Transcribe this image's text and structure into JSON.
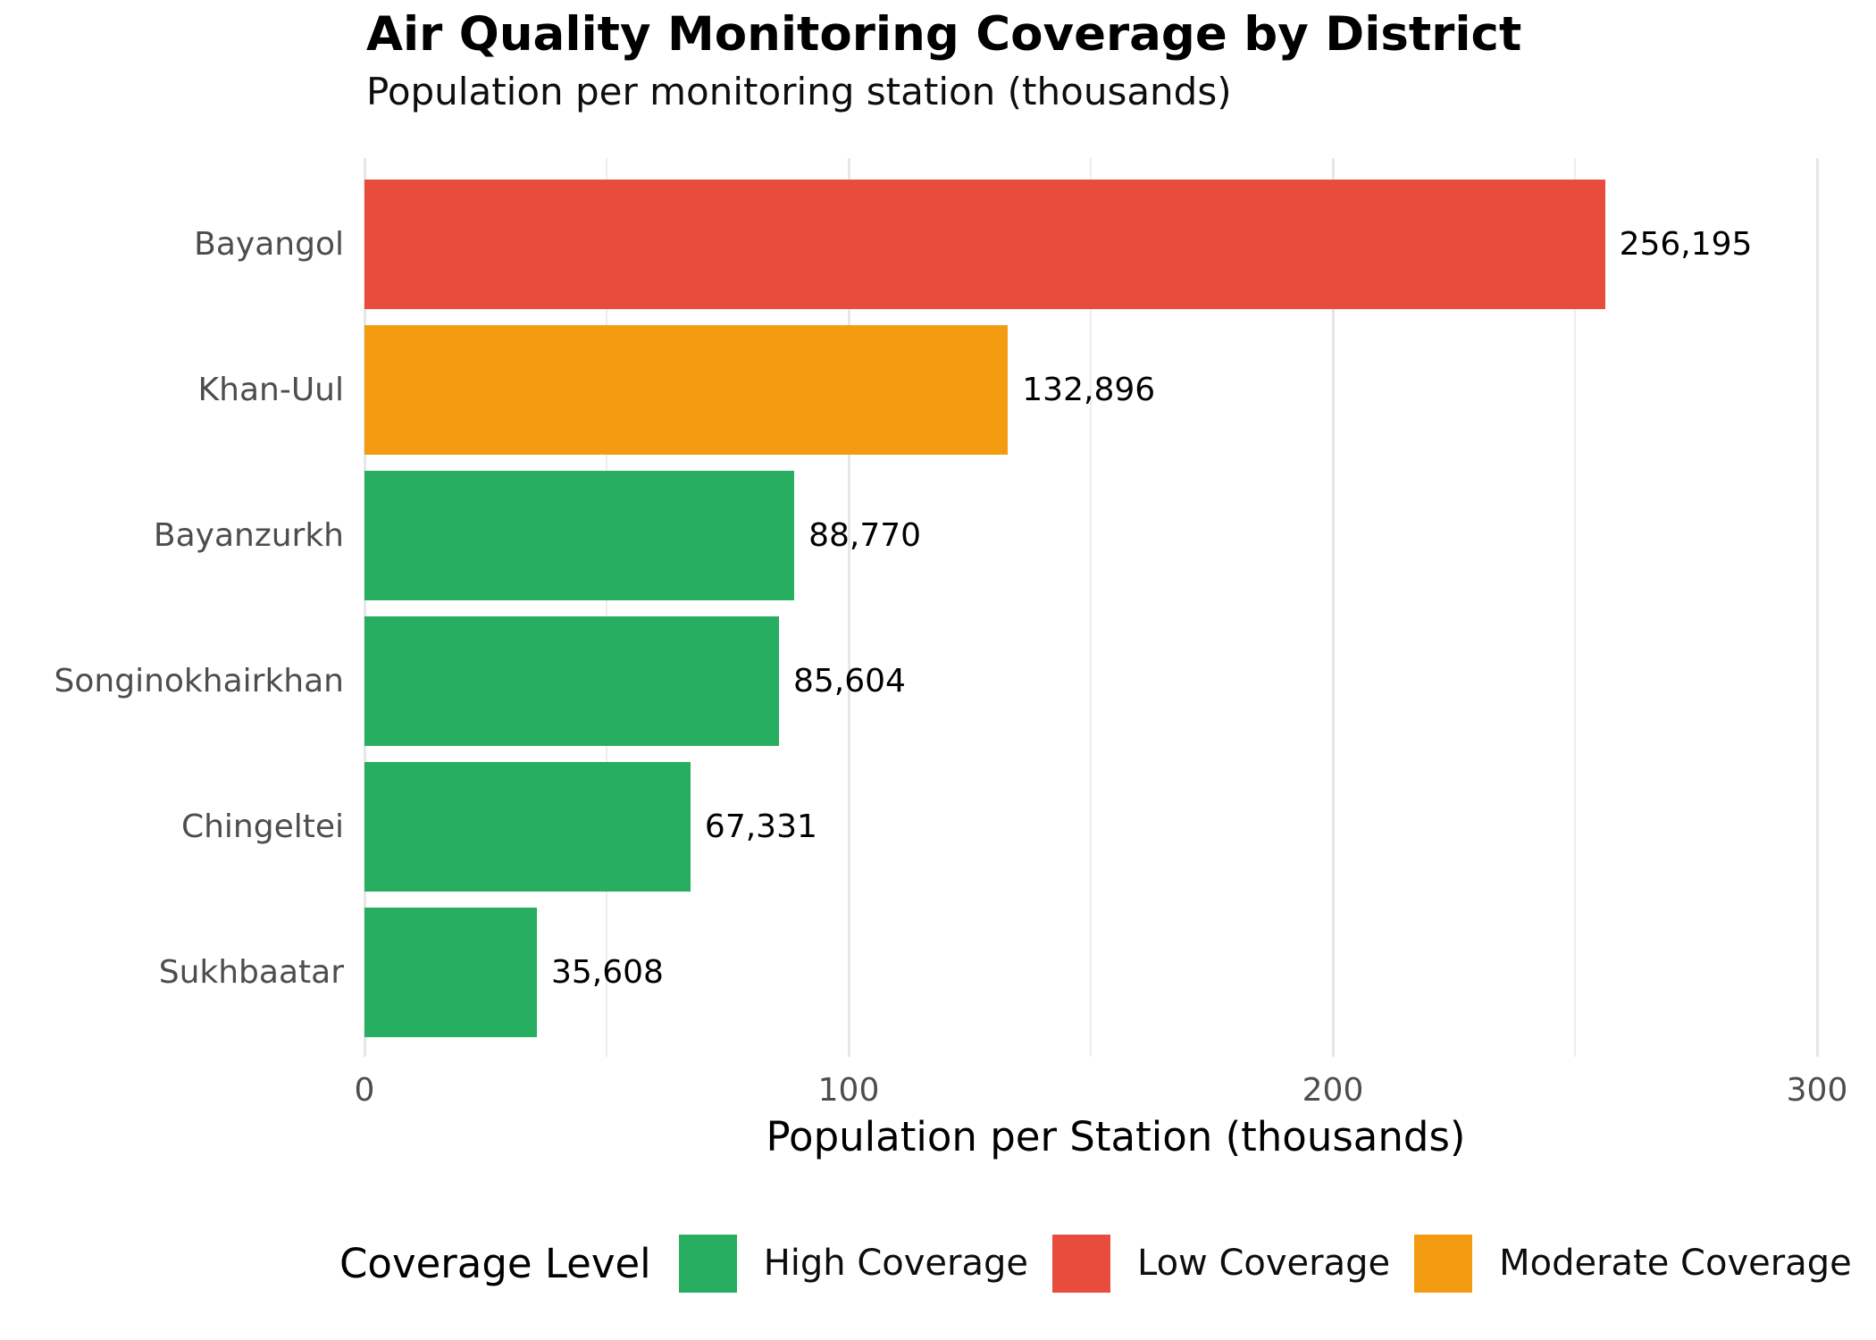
{
  "chart_data": {
    "type": "bar",
    "orientation": "horizontal",
    "title": "Air Quality Monitoring Coverage by District",
    "subtitle": "Population per monitoring station (thousands)",
    "xlabel": "Population per Station (thousands)",
    "categories": [
      "Bayangol",
      "Khan-Uul",
      "Bayanzurkh",
      "Songinokhairkhan",
      "Chingeltei",
      "Sukhbaatar"
    ],
    "values": [
      256.195,
      132.896,
      88.77,
      85.604,
      67.331,
      35.608
    ],
    "value_labels": [
      "256,195",
      "132,896",
      "88,770",
      "85,604",
      "67,331",
      "35,608"
    ],
    "coverage_levels": [
      "Low Coverage",
      "Moderate Coverage",
      "High Coverage",
      "High Coverage",
      "High Coverage",
      "High Coverage"
    ],
    "bar_colors": [
      "#E74C3C",
      "#F39C12",
      "#27AE60",
      "#27AE60",
      "#27AE60",
      "#27AE60"
    ],
    "xlim": [
      0,
      310
    ],
    "xticks": [
      0,
      100,
      200,
      300
    ],
    "minor_ticks": [
      50,
      150,
      250
    ],
    "grid": "vertical-only",
    "legend": {
      "title": "Coverage Level",
      "position": "bottom",
      "entries": [
        {
          "label": "High Coverage",
          "color": "#27AE60"
        },
        {
          "label": "Low Coverage",
          "color": "#E74C3C"
        },
        {
          "label": "Moderate Coverage",
          "color": "#F39C12"
        }
      ]
    }
  },
  "colors": {
    "background": "#FFFFFF",
    "high_coverage": "#27AE60",
    "low_coverage": "#E74C3C",
    "moderate_coverage": "#F39C12",
    "grid_major": "#E7E7E7",
    "grid_minor": "#EDEDED",
    "axis_text_gray": "#4D4D4D",
    "text_black": "#000000"
  }
}
